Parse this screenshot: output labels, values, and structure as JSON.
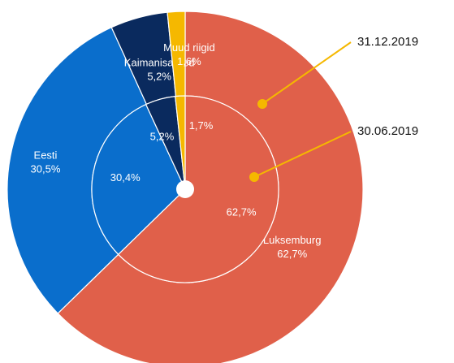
{
  "chart_data": {
    "type": "pie",
    "categories": [
      "Luksemburg",
      "Eesti",
      "Kaimanisaared",
      "Muud riigid"
    ],
    "colors": [
      "#e0604a",
      "#0a6ecc",
      "#0a2a5e",
      "#f5b800"
    ],
    "series": [
      {
        "name": "31.12.2019",
        "values": [
          62.7,
          30.5,
          5.2,
          1.6
        ],
        "value_labels": [
          "62,7%",
          "30,5%",
          "5,2%",
          "1,6%"
        ]
      },
      {
        "name": "30.06.2019",
        "values": [
          62.7,
          30.4,
          5.2,
          1.7
        ],
        "value_labels": [
          "62,7%",
          "30,4%",
          "5,2%",
          "1,7%"
        ]
      }
    ]
  }
}
